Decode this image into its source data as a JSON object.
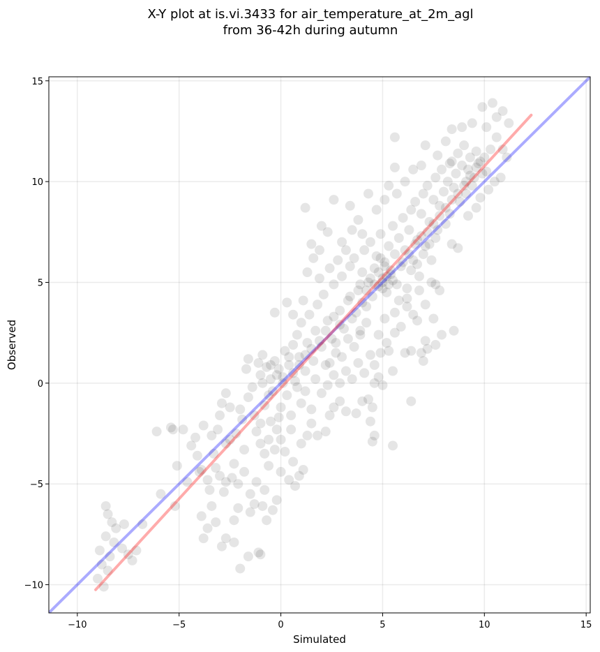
{
  "chart_data": {
    "type": "scatter",
    "title_line1": "X-Y plot at is.vi.3433 for air_temperature_at_2m_agl",
    "title_line2": "from 36-42h during autumn",
    "xlabel": "Simulated",
    "ylabel": "Observed",
    "xlim": [
      -11.4,
      15.2
    ],
    "ylim": [
      -11.4,
      15.2
    ],
    "xticks": [
      -10,
      -5,
      0,
      5,
      10,
      15
    ],
    "yticks": [
      -10,
      -5,
      0,
      5,
      10,
      15
    ],
    "xtick_labels": [
      "−10",
      "−5",
      "0",
      "5",
      "10",
      "15"
    ],
    "ytick_labels": [
      "−10",
      "−5",
      "0",
      "5",
      "10",
      "15"
    ],
    "grid": true,
    "point_color": "#000000",
    "point_alpha": 0.08,
    "lines": [
      {
        "kind": "one-to-one",
        "color": "#0000ff",
        "alpha": 0.33,
        "x": [
          -11.4,
          15.2
        ],
        "y": [
          -11.4,
          15.2
        ]
      },
      {
        "kind": "regression",
        "color": "#ff0000",
        "alpha": 0.33,
        "x": [
          -9.1,
          12.3
        ],
        "y": [
          -10.25,
          13.3
        ]
      }
    ],
    "points": [
      [
        -8.7,
        -10.1
      ],
      [
        -9.0,
        -9.7
      ],
      [
        -8.5,
        -9.3
      ],
      [
        -8.8,
        -9.0
      ],
      [
        -8.4,
        -8.6
      ],
      [
        -8.9,
        -8.3
      ],
      [
        -8.2,
        -7.9
      ],
      [
        -7.8,
        -8.2
      ],
      [
        -7.5,
        -8.5
      ],
      [
        -7.3,
        -8.8
      ],
      [
        -7.1,
        -8.3
      ],
      [
        -8.6,
        -7.6
      ],
      [
        -8.1,
        -7.2
      ],
      [
        -7.7,
        -7.0
      ],
      [
        -8.3,
        -6.9
      ],
      [
        -8.5,
        -6.5
      ],
      [
        -8.6,
        -6.1
      ],
      [
        -6.8,
        -7.0
      ],
      [
        -5.9,
        -5.5
      ],
      [
        -5.2,
        -6.1
      ],
      [
        -5.1,
        -4.1
      ],
      [
        -6.1,
        -2.4
      ],
      [
        -5.4,
        -2.2
      ],
      [
        -4.8,
        -2.3
      ],
      [
        -5.3,
        -2.3
      ],
      [
        -4.4,
        -3.1
      ],
      [
        -4.1,
        -3.6
      ],
      [
        -3.9,
        -4.3
      ],
      [
        -3.6,
        -4.8
      ],
      [
        -3.2,
        -4.2
      ],
      [
        -3.0,
        -4.6
      ],
      [
        -2.7,
        -4.9
      ],
      [
        -2.4,
        -4.7
      ],
      [
        -2.1,
        -5.0
      ],
      [
        -1.8,
        -4.4
      ],
      [
        -1.5,
        -5.5
      ],
      [
        -1.2,
        -4.9
      ],
      [
        -3.9,
        -6.6
      ],
      [
        -3.6,
        -7.2
      ],
      [
        -3.4,
        -6.1
      ],
      [
        -3.2,
        -6.9
      ],
      [
        -2.7,
        -7.7
      ],
      [
        -2.9,
        -8.1
      ],
      [
        -2.3,
        -7.9
      ],
      [
        -1.6,
        -8.6
      ],
      [
        -2.0,
        -9.2
      ],
      [
        -1.1,
        -8.4
      ],
      [
        -1.0,
        -8.5
      ],
      [
        -0.9,
        -6.1
      ],
      [
        -0.7,
        -6.8
      ],
      [
        -0.4,
        -6.3
      ],
      [
        -0.2,
        -5.8
      ],
      [
        -1.5,
        -6.4
      ],
      [
        -2.3,
        -6.8
      ],
      [
        -3.8,
        -7.7
      ],
      [
        -0.8,
        -5.3
      ],
      [
        -3.4,
        -2.6
      ],
      [
        -3.0,
        -1.6
      ],
      [
        -2.9,
        -1.0
      ],
      [
        -2.7,
        -0.5
      ],
      [
        -2.5,
        -1.2
      ],
      [
        -3.1,
        -2.3
      ],
      [
        -2.7,
        -3.0
      ],
      [
        -2.2,
        -2.5
      ],
      [
        -1.9,
        -1.8
      ],
      [
        -1.6,
        -0.7
      ],
      [
        -1.4,
        -0.2
      ],
      [
        -1.7,
        0.7
      ],
      [
        -1.6,
        1.2
      ],
      [
        -1.3,
        -1.6
      ],
      [
        -1.2,
        -2.4
      ],
      [
        -1.0,
        -3.0
      ],
      [
        -0.8,
        -3.5
      ],
      [
        -0.6,
        -2.8
      ],
      [
        -0.5,
        -1.9
      ],
      [
        -0.2,
        -2.3
      ],
      [
        0.0,
        -2.8
      ],
      [
        0.2,
        -3.4
      ],
      [
        0.0,
        -4.4
      ],
      [
        0.4,
        -4.8
      ],
      [
        0.7,
        -5.1
      ],
      [
        0.9,
        -4.6
      ],
      [
        1.1,
        -4.3
      ],
      [
        0.6,
        -3.9
      ],
      [
        1.0,
        -3.0
      ],
      [
        1.3,
        -2.6
      ],
      [
        1.5,
        -2.0
      ],
      [
        1.8,
        -2.6
      ],
      [
        2.2,
        -2.4
      ],
      [
        2.4,
        -1.6
      ],
      [
        2.6,
        -1.2
      ],
      [
        2.9,
        -0.9
      ],
      [
        3.2,
        -1.4
      ],
      [
        3.7,
        -1.5
      ],
      [
        4.0,
        -0.9
      ],
      [
        4.3,
        -0.8
      ],
      [
        4.5,
        -1.2
      ],
      [
        4.4,
        -1.9
      ],
      [
        4.6,
        -2.6
      ],
      [
        4.5,
        -2.9
      ],
      [
        5.5,
        -3.1
      ],
      [
        6.4,
        -0.9
      ],
      [
        5.0,
        -0.1
      ],
      [
        4.8,
        0.3
      ],
      [
        4.6,
        0.9
      ],
      [
        4.9,
        1.5
      ],
      [
        5.2,
        2.0
      ],
      [
        5.6,
        2.5
      ],
      [
        5.5,
        0.6
      ],
      [
        6.1,
        1.5
      ],
      [
        6.4,
        1.6
      ],
      [
        6.9,
        1.5
      ],
      [
        7.0,
        1.1
      ],
      [
        7.2,
        1.7
      ],
      [
        7.6,
        1.9
      ],
      [
        7.9,
        2.4
      ],
      [
        8.5,
        2.6
      ],
      [
        7.5,
        3.2
      ],
      [
        7.1,
        2.1
      ],
      [
        6.7,
        3.1
      ],
      [
        6.2,
        3.8
      ],
      [
        5.8,
        4.1
      ],
      [
        7.8,
        4.6
      ],
      [
        7.6,
        4.9
      ],
      [
        8.4,
        6.9
      ],
      [
        8.7,
        6.7
      ],
      [
        9.2,
        8.3
      ],
      [
        9.6,
        8.7
      ],
      [
        9.8,
        9.2
      ],
      [
        10.2,
        9.6
      ],
      [
        10.5,
        10.0
      ],
      [
        10.8,
        10.2
      ],
      [
        11.1,
        11.2
      ],
      [
        10.9,
        11.6
      ],
      [
        10.6,
        12.2
      ],
      [
        10.1,
        12.7
      ],
      [
        10.6,
        13.2
      ],
      [
        10.9,
        13.5
      ],
      [
        11.2,
        12.9
      ],
      [
        10.4,
        13.9
      ],
      [
        9.9,
        13.7
      ],
      [
        9.4,
        12.9
      ],
      [
        8.9,
        12.7
      ],
      [
        8.4,
        12.6
      ],
      [
        8.1,
        12.0
      ],
      [
        7.7,
        11.3
      ],
      [
        7.1,
        11.8
      ],
      [
        6.9,
        10.8
      ],
      [
        6.5,
        10.6
      ],
      [
        6.1,
        10.0
      ],
      [
        5.7,
        9.4
      ],
      [
        5.3,
        9.8
      ],
      [
        5.1,
        9.1
      ],
      [
        4.7,
        8.6
      ],
      [
        4.3,
        9.4
      ],
      [
        3.8,
        8.1
      ],
      [
        3.4,
        8.8
      ],
      [
        2.6,
        9.1
      ],
      [
        2.0,
        7.8
      ],
      [
        1.2,
        8.7
      ],
      [
        1.5,
        6.9
      ],
      [
        1.9,
        6.6
      ],
      [
        2.3,
        7.5
      ],
      [
        3.0,
        7.0
      ],
      [
        3.5,
        7.6
      ],
      [
        4.0,
        7.4
      ],
      [
        5.6,
        12.2
      ],
      [
        5.6,
        10.7
      ],
      [
        8.3,
        10.9
      ],
      [
        9.1,
        10.0
      ],
      [
        9.6,
        11.5
      ],
      [
        -1.1,
        1.0
      ],
      [
        -1.0,
        0.4
      ],
      [
        -0.9,
        1.4
      ],
      [
        -0.7,
        0.8
      ],
      [
        -0.5,
        0.2
      ],
      [
        -0.3,
        1.1
      ],
      [
        -0.1,
        0.7
      ],
      [
        0.1,
        0.3
      ],
      [
        0.2,
        1.6
      ],
      [
        0.4,
        0.9
      ],
      [
        0.6,
        1.9
      ],
      [
        0.7,
        0.1
      ],
      [
        0.8,
        2.4
      ],
      [
        0.9,
        1.3
      ],
      [
        1.0,
        3.0
      ],
      [
        1.2,
        0.6
      ],
      [
        1.3,
        2.0
      ],
      [
        1.4,
        3.4
      ],
      [
        1.6,
        1.1
      ],
      [
        1.7,
        2.6
      ],
      [
        1.8,
        3.9
      ],
      [
        2.0,
        1.8
      ],
      [
        2.1,
        4.4
      ],
      [
        2.2,
        0.9
      ],
      [
        2.3,
        3.1
      ],
      [
        2.5,
        2.2
      ],
      [
        2.6,
        4.9
      ],
      [
        2.7,
        1.5
      ],
      [
        2.9,
        3.6
      ],
      [
        3.0,
        5.3
      ],
      [
        3.1,
        2.7
      ],
      [
        3.3,
        4.1
      ],
      [
        3.4,
        5.8
      ],
      [
        3.5,
        3.2
      ],
      [
        3.6,
        6.2
      ],
      [
        3.8,
        4.6
      ],
      [
        3.9,
        2.4
      ],
      [
        4.0,
        5.5
      ],
      [
        4.1,
        6.6
      ],
      [
        4.2,
        3.8
      ],
      [
        4.3,
        5.0
      ],
      [
        4.4,
        7.0
      ],
      [
        4.5,
        4.3
      ],
      [
        4.6,
        5.7
      ],
      [
        4.7,
        6.3
      ],
      [
        4.8,
        4.8
      ],
      [
        4.9,
        7.4
      ],
      [
        5.0,
        5.2
      ],
      [
        5.1,
        6.0
      ],
      [
        5.2,
        4.5
      ],
      [
        5.3,
        6.8
      ],
      [
        5.4,
        5.4
      ],
      [
        5.5,
        7.8
      ],
      [
        5.6,
        6.4
      ],
      [
        5.7,
        4.9
      ],
      [
        5.8,
        7.2
      ],
      [
        5.9,
        5.8
      ],
      [
        6.0,
        8.2
      ],
      [
        6.1,
        6.6
      ],
      [
        6.2,
        4.7
      ],
      [
        6.3,
        7.6
      ],
      [
        6.4,
        8.6
      ],
      [
        6.5,
        6.1
      ],
      [
        6.6,
        9.0
      ],
      [
        6.7,
        7.1
      ],
      [
        6.8,
        5.3
      ],
      [
        6.9,
        8.4
      ],
      [
        7.0,
        9.4
      ],
      [
        7.1,
        6.8
      ],
      [
        7.2,
        9.8
      ],
      [
        7.3,
        8.0
      ],
      [
        7.4,
        6.1
      ],
      [
        7.5,
        9.1
      ],
      [
        7.6,
        10.2
      ],
      [
        7.7,
        7.6
      ],
      [
        7.8,
        8.8
      ],
      [
        7.9,
        10.6
      ],
      [
        8.0,
        9.5
      ],
      [
        8.1,
        7.9
      ],
      [
        8.2,
        10.0
      ],
      [
        8.3,
        8.4
      ],
      [
        8.4,
        11.0
      ],
      [
        8.5,
        9.7
      ],
      [
        8.6,
        10.4
      ],
      [
        8.7,
        11.4
      ],
      [
        8.8,
        9.0
      ],
      [
        8.9,
        10.8
      ],
      [
        9.0,
        11.8
      ],
      [
        9.1,
        9.4
      ],
      [
        9.2,
        10.6
      ],
      [
        9.3,
        11.2
      ],
      [
        9.4,
        9.8
      ],
      [
        9.5,
        10.2
      ],
      [
        9.7,
        10.9
      ],
      [
        9.9,
        10.4
      ],
      [
        10.0,
        11.2
      ],
      [
        10.3,
        11.6
      ],
      [
        -0.3,
        3.5
      ],
      [
        0.3,
        4.0
      ],
      [
        0.6,
        3.4
      ],
      [
        1.1,
        4.1
      ],
      [
        1.9,
        5.2
      ],
      [
        2.4,
        5.7
      ],
      [
        2.8,
        6.1
      ],
      [
        3.2,
        6.6
      ],
      [
        1.3,
        5.5
      ],
      [
        1.6,
        6.2
      ],
      [
        -0.8,
        -1.1
      ],
      [
        -0.4,
        -0.4
      ],
      [
        0.0,
        -1.2
      ],
      [
        0.3,
        -0.6
      ],
      [
        0.5,
        -1.6
      ],
      [
        0.8,
        -0.2
      ],
      [
        1.0,
        -1.0
      ],
      [
        1.2,
        -0.4
      ],
      [
        1.5,
        -1.3
      ],
      [
        1.7,
        0.2
      ],
      [
        2.0,
        -0.5
      ],
      [
        2.3,
        -0.1
      ],
      [
        2.6,
        0.4
      ],
      [
        2.9,
        0.0
      ],
      [
        3.2,
        0.6
      ],
      [
        3.5,
        0.2
      ],
      [
        3.8,
        1.0
      ],
      [
        4.1,
        0.5
      ],
      [
        4.4,
        1.4
      ],
      [
        4.6,
        0.0
      ],
      [
        4.8,
        2.4
      ],
      [
        5.1,
        3.2
      ],
      [
        5.3,
        1.6
      ],
      [
        5.6,
        3.5
      ],
      [
        5.9,
        2.8
      ],
      [
        6.2,
        4.2
      ],
      [
        6.5,
        3.4
      ],
      [
        6.8,
        4.6
      ],
      [
        7.1,
        3.9
      ],
      [
        7.4,
        5.0
      ],
      [
        3.6,
        1.8
      ],
      [
        3.9,
        2.6
      ],
      [
        4.2,
        3.0
      ],
      [
        2.4,
        1.0
      ],
      [
        2.7,
        2.0
      ],
      [
        3.0,
        1.3
      ],
      [
        3.3,
        2.2
      ],
      [
        -2.0,
        -1.3
      ],
      [
        -2.5,
        -2.8
      ],
      [
        -3.3,
        -3.5
      ],
      [
        -3.8,
        -2.1
      ],
      [
        -4.2,
        -2.7
      ],
      [
        -4.6,
        -4.9
      ],
      [
        -4.0,
        -4.4
      ],
      [
        -3.5,
        -5.3
      ],
      [
        -2.8,
        -5.4
      ],
      [
        -2.1,
        -6.2
      ],
      [
        -1.3,
        -6.0
      ],
      [
        -0.6,
        -4.1
      ],
      [
        -0.3,
        -3.3
      ],
      [
        0.5,
        -2.3
      ],
      [
        -1.8,
        -3.3
      ],
      [
        -2.3,
        -4.0
      ],
      [
        -1.0,
        -2.0
      ],
      [
        -0.1,
        -1.7
      ],
      [
        5.0,
        5.0
      ],
      [
        5.2,
        5.3
      ],
      [
        5.4,
        5.6
      ],
      [
        4.8,
        5.5
      ],
      [
        5.0,
        4.7
      ],
      [
        5.3,
        4.9
      ],
      [
        5.5,
        5.1
      ],
      [
        4.6,
        4.9
      ],
      [
        5.1,
        5.8
      ],
      [
        4.9,
        6.2
      ],
      [
        4.2,
        4.6
      ],
      [
        4.4,
        5.2
      ],
      [
        3.9,
        4.9
      ],
      [
        4.0,
        4.0
      ],
      [
        3.7,
        3.5
      ],
      [
        3.4,
        4.3
      ],
      [
        2.9,
        2.9
      ],
      [
        2.6,
        3.3
      ],
      [
        2.2,
        2.6
      ],
      [
        1.9,
        2.1
      ],
      [
        1.5,
        1.7
      ],
      [
        1.2,
        1.4
      ],
      [
        0.9,
        0.9
      ],
      [
        0.6,
        0.5
      ],
      [
        0.4,
        1.3
      ],
      [
        0.1,
        0.0
      ],
      [
        -0.2,
        0.4
      ],
      [
        -0.5,
        0.9
      ],
      [
        -0.9,
        0.0
      ],
      [
        -0.6,
        -0.6
      ],
      [
        6.0,
        6.0
      ],
      [
        6.3,
        6.4
      ],
      [
        6.6,
        6.9
      ],
      [
        6.9,
        7.3
      ],
      [
        7.2,
        7.5
      ],
      [
        7.5,
        7.9
      ],
      [
        7.8,
        8.3
      ],
      [
        8.1,
        8.7
      ],
      [
        8.4,
        9.1
      ],
      [
        8.7,
        9.4
      ],
      [
        9.0,
        9.8
      ],
      [
        9.3,
        10.3
      ],
      [
        9.6,
        10.7
      ],
      [
        9.8,
        11.0
      ],
      [
        10.1,
        10.5
      ],
      [
        6.4,
        5.6
      ],
      [
        6.7,
        5.9
      ],
      [
        7.0,
        6.4
      ],
      [
        7.3,
        6.9
      ],
      [
        7.6,
        7.2
      ]
    ]
  }
}
